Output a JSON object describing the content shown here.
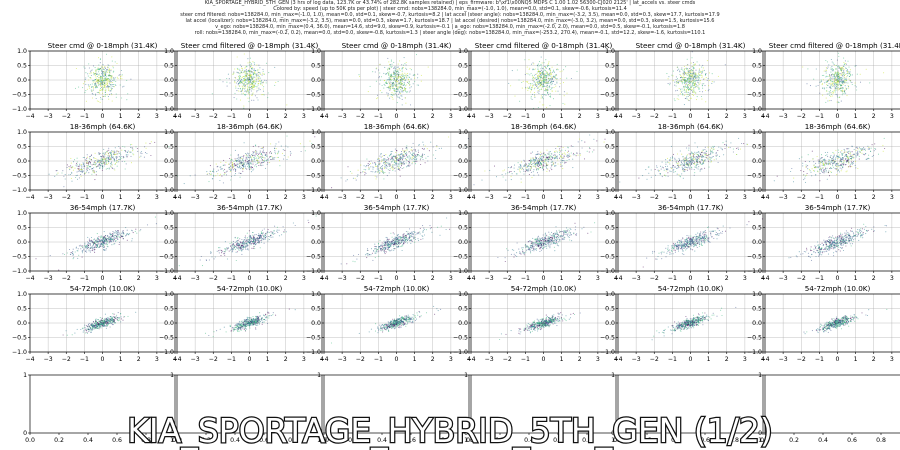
{
  "header": {
    "lines": [
      "KIA_SPORTAGE_HYBRID_5TH_GEN (3 hrs of log data, 123.7K or 43.74% of 282.8K samples retained) | eps_firmware: b'\\xf1\\x00NQ5 MDPS C 1.00 1.02 56300-CJ020 2125' | lat_accels vs. steer cmds",
      "Colored by: speed (up to 50K pts per plot) | steer cmd: nobs=138284.0, min_max=(-1.0, 1.0), mean=0.0, std=0.1, skew=-0.6, kurtosis=11.4",
      "steer cmd filtered: nobs=138284.0, min_max=(-1.0, 1.0), mean=0.0, std=0.1, skew=-0.7, kurtosis=8.2 | lat accel (steer angle): nobs=138284.0, min_max=(-3.2, 3.5), mean=0.0, std=0.3, skew=17.7, kurtosis=17.9",
      "lat accel (localizer): nobs=138284.0, min_max=(-3.2, 3.5), mean=0.0, std=0.3, skew=1.7, kurtosis=18.7 | lat accel (desired) nobs=138284.0, min_max=(-3.0, 3.2), mean=0.0, std=0.3, skew=1.5, kurtosis=15.6",
      "v_ego: nobs=138284.0, min_max=(0.4, 36.0), mean=14.6, std=9.0, skew=0.9, kurtosis=-0.1 | a_ego: nobs=138284.0, min_max=(-2.0, 2.0), mean=0.0, std=0.5, skew=-0.1, kurtosis=1.8",
      "roll: nobs=138284.0, min_max=(-0.2, 0.2), mean=0.0, std=0.0, skew=-0.8, kurtosis=1.3 | steer angle (deg): nobs=138284.0, min_max=(-253.2, 270.4), mean=-0.1, std=12.2, skew=-1.6, kurtosis=110.1"
    ]
  },
  "overlay_title": "KIA_SPORTAGE_HYBRID_5TH_GEN (1/2)",
  "colors": {
    "low_speed": "#c5e21b",
    "mid_low": "#35b779",
    "mid": "#2a788e",
    "high": "#3b528b",
    "highest": "#440154",
    "axis": "#000000",
    "grid": "#b0b0b0"
  },
  "chart_data": {
    "type": "scatter",
    "grid": true,
    "columns": 6,
    "rows": [
      {
        "title_left": "Steer cmd @ 0-18mph (31.4K)",
        "title_right": "Steer cmd filtered @ 0-18mph (31.4K)",
        "speed_band": "low",
        "spread_x": 0.35,
        "spread_y": 0.28,
        "slope": 0.08
      },
      {
        "title_left": "18-36mph (64.6K)",
        "title_right": "18-36mph (64.6K)",
        "speed_band": "mid",
        "spread_x": 0.9,
        "spread_y": 0.18,
        "slope": 0.18
      },
      {
        "title_left": "36-54mph (17.7K)",
        "title_right": "36-54mph (17.7K)",
        "speed_band": "midhigh",
        "spread_x": 0.7,
        "spread_y": 0.12,
        "slope": 0.22
      },
      {
        "title_left": "54-72mph (10.0K)",
        "title_right": "54-72mph (10.0K)",
        "speed_band": "high",
        "spread_x": 0.45,
        "spread_y": 0.08,
        "slope": 0.2
      }
    ],
    "empty_row": true,
    "xlim": [
      -4,
      4
    ],
    "ylim": [
      -1.0,
      1.0
    ],
    "x_ticks": [
      "−4",
      "−3",
      "−2",
      "−1",
      "0",
      "1",
      "2",
      "3",
      "4"
    ],
    "y_ticks": [
      "−1.0",
      "−0.5",
      "0.0",
      "0.5",
      "1.0"
    ],
    "empty_x_ticks": [
      "0.0",
      "0.2",
      "0.4",
      "0.6",
      "0.8",
      "1.0"
    ],
    "empty_y_ticks": [
      "0",
      "1"
    ]
  }
}
